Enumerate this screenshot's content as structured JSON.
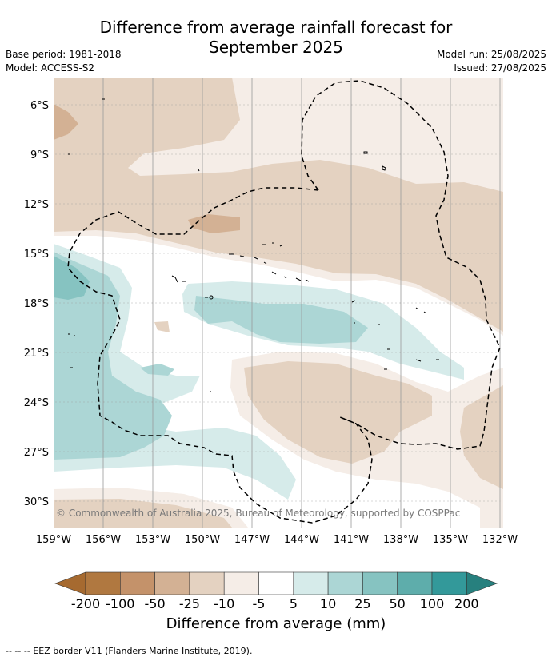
{
  "title_line1": "Difference from average rainfall forecast for",
  "title_line2": "September 2025",
  "base_period": "Base period: 1981-2018",
  "model": "Model: ACCESS-S2",
  "model_run": "Model run: 25/08/2025",
  "issued": "Issued: 27/08/2025",
  "copyright": "© Commonwealth of Australia 2025, Bureau of Meteorology, supported by COSPPac",
  "lat_labels": [
    "6°S",
    "9°S",
    "12°S",
    "15°S",
    "18°S",
    "21°S",
    "24°S",
    "27°S",
    "30°S"
  ],
  "lon_labels": [
    "159°W",
    "156°W",
    "153°W",
    "150°W",
    "147°W",
    "144°W",
    "141°W",
    "138°W",
    "135°W",
    "132°W"
  ],
  "colorbar": {
    "title": "Difference from average (mm)",
    "ticks": [
      "-200",
      "-100",
      "-50",
      "-25",
      "-10",
      "-5",
      "5",
      "10",
      "25",
      "50",
      "100",
      "200"
    ],
    "colors": [
      "#a66a30",
      "#b07840",
      "#c4926a",
      "#d3b194",
      "#e4d2c1",
      "#f5ede7",
      "#ffffff",
      "#d6ebea",
      "#acd6d5",
      "#86c3c1",
      "#5eadab",
      "#33999a",
      "#27807e"
    ]
  },
  "legend_note": "--  --  -- EEZ border V11 (Flanders Marine Institute, 2019)."
}
